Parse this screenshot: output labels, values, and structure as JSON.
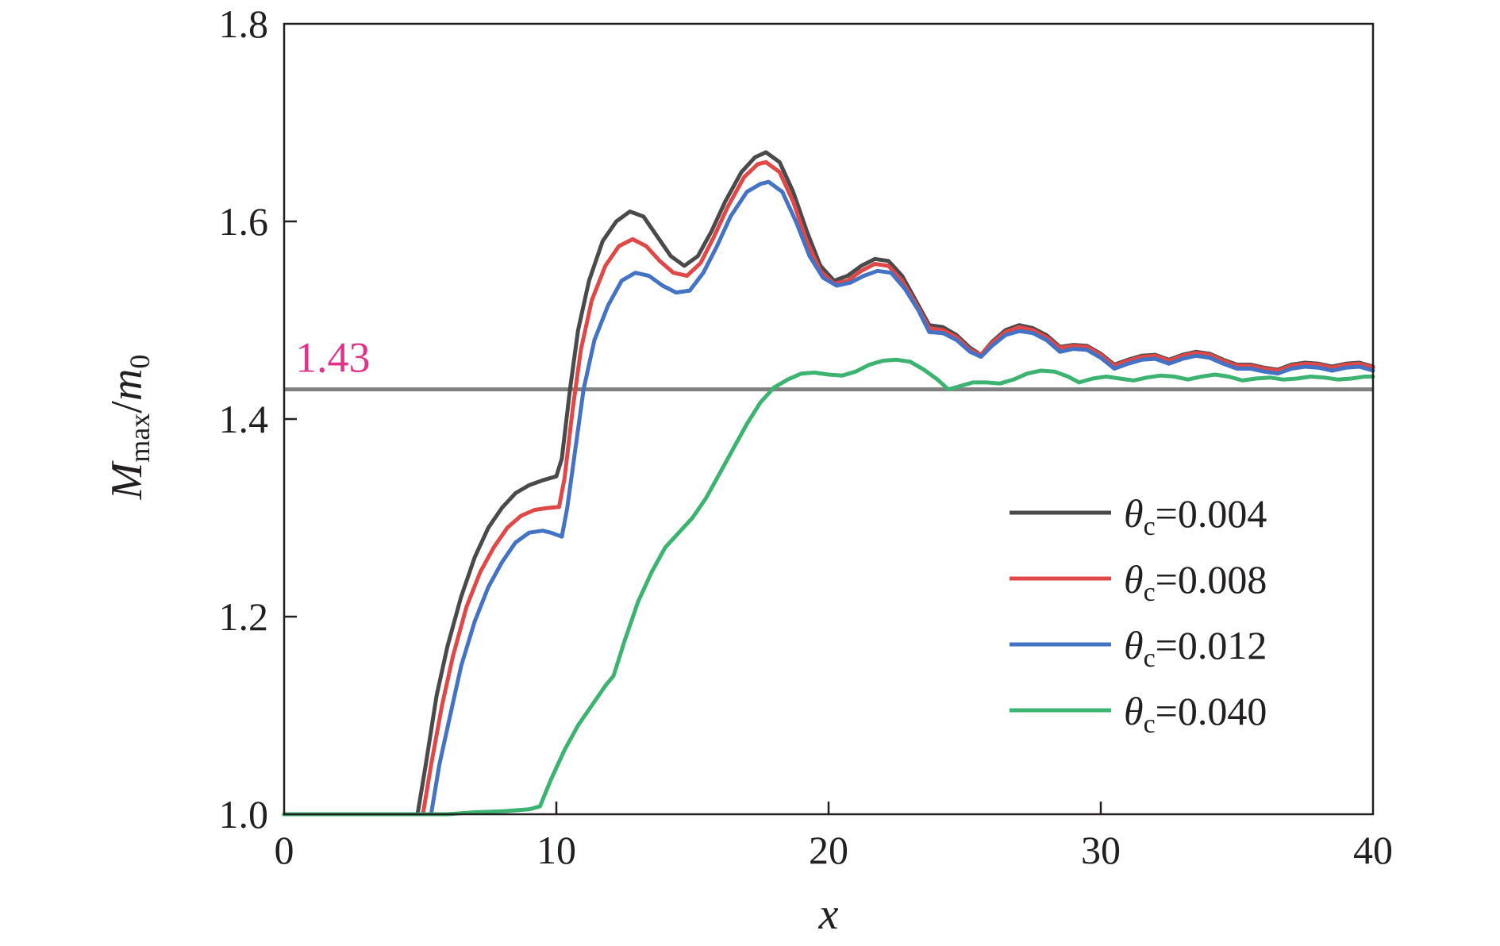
{
  "chart_data": {
    "type": "line",
    "title": "",
    "xlabel": "x",
    "ylabel": {
      "main": "M",
      "sub": "max",
      "sep": "/",
      "main2": "m",
      "sub2": "0"
    },
    "xlim": [
      0,
      40
    ],
    "ylim": [
      1.0,
      1.8
    ],
    "xticks": [
      0,
      10,
      20,
      30,
      40
    ],
    "yticks": [
      1.0,
      1.2,
      1.4,
      1.6,
      1.8
    ],
    "xtick_labels": [
      "0",
      "10",
      "20",
      "30",
      "40"
    ],
    "ytick_labels": [
      "1.0",
      "1.2",
      "1.4",
      "1.6",
      "1.8"
    ],
    "grid": false,
    "legend_position": "right",
    "reference_line": {
      "y": 1.43,
      "label": "1.43",
      "color": "#808080",
      "label_color": "#e0348c"
    },
    "series": [
      {
        "name": "θc=0.004",
        "sym": "θ",
        "sub": "c",
        "value": "=0.004",
        "color": "#4a4a4a",
        "points": [
          [
            0,
            1.0
          ],
          [
            4.9,
            1.0
          ],
          [
            5.2,
            1.05
          ],
          [
            5.6,
            1.12
          ],
          [
            6.0,
            1.17
          ],
          [
            6.5,
            1.22
          ],
          [
            7.0,
            1.26
          ],
          [
            7.5,
            1.29
          ],
          [
            8.0,
            1.31
          ],
          [
            8.5,
            1.325
          ],
          [
            9.0,
            1.333
          ],
          [
            9.5,
            1.338
          ],
          [
            10.0,
            1.342
          ],
          [
            10.2,
            1.36
          ],
          [
            10.5,
            1.43
          ],
          [
            10.8,
            1.49
          ],
          [
            11.2,
            1.54
          ],
          [
            11.7,
            1.58
          ],
          [
            12.2,
            1.6
          ],
          [
            12.7,
            1.61
          ],
          [
            13.2,
            1.605
          ],
          [
            13.7,
            1.585
          ],
          [
            14.2,
            1.565
          ],
          [
            14.7,
            1.555
          ],
          [
            15.2,
            1.565
          ],
          [
            15.7,
            1.59
          ],
          [
            16.2,
            1.62
          ],
          [
            16.8,
            1.65
          ],
          [
            17.3,
            1.665
          ],
          [
            17.7,
            1.67
          ],
          [
            18.2,
            1.66
          ],
          [
            18.7,
            1.63
          ],
          [
            19.2,
            1.59
          ],
          [
            19.7,
            1.555
          ],
          [
            20.2,
            1.54
          ],
          [
            20.7,
            1.545
          ],
          [
            21.2,
            1.555
          ],
          [
            21.7,
            1.562
          ],
          [
            22.2,
            1.56
          ],
          [
            22.7,
            1.545
          ],
          [
            23.2,
            1.52
          ],
          [
            23.7,
            1.495
          ],
          [
            24.2,
            1.493
          ],
          [
            24.7,
            1.485
          ],
          [
            25.2,
            1.472
          ],
          [
            25.6,
            1.465
          ],
          [
            26.0,
            1.478
          ],
          [
            26.5,
            1.49
          ],
          [
            27.0,
            1.495
          ],
          [
            27.5,
            1.492
          ],
          [
            28.0,
            1.485
          ],
          [
            28.5,
            1.473
          ],
          [
            29.0,
            1.475
          ],
          [
            29.5,
            1.474
          ],
          [
            30.0,
            1.466
          ],
          [
            30.5,
            1.455
          ],
          [
            31.0,
            1.46
          ],
          [
            31.5,
            1.464
          ],
          [
            32.0,
            1.465
          ],
          [
            32.5,
            1.46
          ],
          [
            33.0,
            1.465
          ],
          [
            33.5,
            1.468
          ],
          [
            34.0,
            1.466
          ],
          [
            34.5,
            1.46
          ],
          [
            35.0,
            1.455
          ],
          [
            35.5,
            1.455
          ],
          [
            36.0,
            1.452
          ],
          [
            36.5,
            1.45
          ],
          [
            37.0,
            1.455
          ],
          [
            37.5,
            1.457
          ],
          [
            38.0,
            1.456
          ],
          [
            38.5,
            1.453
          ],
          [
            39.0,
            1.456
          ],
          [
            39.5,
            1.457
          ],
          [
            40.0,
            1.453
          ]
        ]
      },
      {
        "name": "θc=0.008",
        "sym": "θ",
        "sub": "c",
        "value": "=0.008",
        "color": "#e04848",
        "points": [
          [
            0,
            1.0
          ],
          [
            5.1,
            1.0
          ],
          [
            5.4,
            1.05
          ],
          [
            5.8,
            1.11
          ],
          [
            6.2,
            1.16
          ],
          [
            6.7,
            1.21
          ],
          [
            7.2,
            1.245
          ],
          [
            7.7,
            1.27
          ],
          [
            8.2,
            1.29
          ],
          [
            8.7,
            1.302
          ],
          [
            9.2,
            1.308
          ],
          [
            9.7,
            1.31
          ],
          [
            10.1,
            1.311
          ],
          [
            10.3,
            1.34
          ],
          [
            10.6,
            1.41
          ],
          [
            10.9,
            1.47
          ],
          [
            11.3,
            1.52
          ],
          [
            11.8,
            1.555
          ],
          [
            12.3,
            1.575
          ],
          [
            12.8,
            1.582
          ],
          [
            13.3,
            1.575
          ],
          [
            13.8,
            1.56
          ],
          [
            14.3,
            1.548
          ],
          [
            14.8,
            1.545
          ],
          [
            15.3,
            1.558
          ],
          [
            15.8,
            1.585
          ],
          [
            16.3,
            1.615
          ],
          [
            16.9,
            1.645
          ],
          [
            17.4,
            1.658
          ],
          [
            17.7,
            1.66
          ],
          [
            18.2,
            1.65
          ],
          [
            18.7,
            1.62
          ],
          [
            19.2,
            1.58
          ],
          [
            19.7,
            1.55
          ],
          [
            20.2,
            1.537
          ],
          [
            20.7,
            1.54
          ],
          [
            21.2,
            1.55
          ],
          [
            21.7,
            1.557
          ],
          [
            22.2,
            1.555
          ],
          [
            22.7,
            1.54
          ],
          [
            23.2,
            1.517
          ],
          [
            23.7,
            1.492
          ],
          [
            24.2,
            1.49
          ],
          [
            24.7,
            1.483
          ],
          [
            25.2,
            1.47
          ],
          [
            25.6,
            1.465
          ],
          [
            26.0,
            1.477
          ],
          [
            26.5,
            1.488
          ],
          [
            27.0,
            1.493
          ],
          [
            27.5,
            1.49
          ],
          [
            28.0,
            1.483
          ],
          [
            28.5,
            1.472
          ],
          [
            29.0,
            1.474
          ],
          [
            29.5,
            1.473
          ],
          [
            30.0,
            1.465
          ],
          [
            30.5,
            1.454
          ],
          [
            31.0,
            1.459
          ],
          [
            31.5,
            1.463
          ],
          [
            32.0,
            1.464
          ],
          [
            32.5,
            1.459
          ],
          [
            33.0,
            1.464
          ],
          [
            33.5,
            1.467
          ],
          [
            34.0,
            1.465
          ],
          [
            34.5,
            1.459
          ],
          [
            35.0,
            1.454
          ],
          [
            35.5,
            1.454
          ],
          [
            36.0,
            1.451
          ],
          [
            36.5,
            1.449
          ],
          [
            37.0,
            1.454
          ],
          [
            37.5,
            1.456
          ],
          [
            38.0,
            1.455
          ],
          [
            38.5,
            1.452
          ],
          [
            39.0,
            1.455
          ],
          [
            39.5,
            1.456
          ],
          [
            40.0,
            1.452
          ]
        ]
      },
      {
        "name": "θc=0.012",
        "sym": "θ",
        "sub": "c",
        "value": "=0.012",
        "color": "#4472c4",
        "points": [
          [
            0,
            1.0
          ],
          [
            5.4,
            1.0
          ],
          [
            5.7,
            1.05
          ],
          [
            6.1,
            1.1
          ],
          [
            6.5,
            1.15
          ],
          [
            7.0,
            1.195
          ],
          [
            7.5,
            1.23
          ],
          [
            8.0,
            1.255
          ],
          [
            8.5,
            1.275
          ],
          [
            9.0,
            1.285
          ],
          [
            9.5,
            1.287
          ],
          [
            9.8,
            1.285
          ],
          [
            10.2,
            1.281
          ],
          [
            10.4,
            1.31
          ],
          [
            10.7,
            1.37
          ],
          [
            11.0,
            1.43
          ],
          [
            11.4,
            1.48
          ],
          [
            11.9,
            1.515
          ],
          [
            12.4,
            1.54
          ],
          [
            12.9,
            1.548
          ],
          [
            13.4,
            1.545
          ],
          [
            13.9,
            1.535
          ],
          [
            14.4,
            1.528
          ],
          [
            14.9,
            1.53
          ],
          [
            15.4,
            1.548
          ],
          [
            15.9,
            1.575
          ],
          [
            16.4,
            1.605
          ],
          [
            17.0,
            1.63
          ],
          [
            17.5,
            1.638
          ],
          [
            17.8,
            1.64
          ],
          [
            18.3,
            1.63
          ],
          [
            18.8,
            1.6
          ],
          [
            19.3,
            1.565
          ],
          [
            19.8,
            1.543
          ],
          [
            20.3,
            1.535
          ],
          [
            20.8,
            1.538
          ],
          [
            21.3,
            1.545
          ],
          [
            21.8,
            1.55
          ],
          [
            22.3,
            1.548
          ],
          [
            22.8,
            1.532
          ],
          [
            23.3,
            1.51
          ],
          [
            23.7,
            1.488
          ],
          [
            24.2,
            1.487
          ],
          [
            24.7,
            1.48
          ],
          [
            25.2,
            1.468
          ],
          [
            25.6,
            1.463
          ],
          [
            26.0,
            1.474
          ],
          [
            26.5,
            1.485
          ],
          [
            27.0,
            1.489
          ],
          [
            27.5,
            1.487
          ],
          [
            28.0,
            1.48
          ],
          [
            28.5,
            1.468
          ],
          [
            29.0,
            1.471
          ],
          [
            29.5,
            1.47
          ],
          [
            30.0,
            1.462
          ],
          [
            30.5,
            1.451
          ],
          [
            31.0,
            1.456
          ],
          [
            31.5,
            1.46
          ],
          [
            32.0,
            1.461
          ],
          [
            32.5,
            1.456
          ],
          [
            33.0,
            1.461
          ],
          [
            33.5,
            1.464
          ],
          [
            34.0,
            1.462
          ],
          [
            34.5,
            1.456
          ],
          [
            35.0,
            1.451
          ],
          [
            35.5,
            1.451
          ],
          [
            36.0,
            1.448
          ],
          [
            36.5,
            1.446
          ],
          [
            37.0,
            1.451
          ],
          [
            37.5,
            1.453
          ],
          [
            38.0,
            1.452
          ],
          [
            38.5,
            1.449
          ],
          [
            39.0,
            1.452
          ],
          [
            39.5,
            1.453
          ],
          [
            40.0,
            1.449
          ]
        ]
      },
      {
        "name": "θc=0.040",
        "sym": "θ",
        "sub": "c",
        "value": "=0.040",
        "color": "#3cb371",
        "points": [
          [
            0,
            1.0
          ],
          [
            6.0,
            1.0
          ],
          [
            7.0,
            1.002
          ],
          [
            8.0,
            1.003
          ],
          [
            9.0,
            1.005
          ],
          [
            9.4,
            1.008
          ],
          [
            9.8,
            1.035
          ],
          [
            10.3,
            1.065
          ],
          [
            10.8,
            1.09
          ],
          [
            11.3,
            1.11
          ],
          [
            11.8,
            1.13
          ],
          [
            12.1,
            1.14
          ],
          [
            12.5,
            1.175
          ],
          [
            13.0,
            1.215
          ],
          [
            13.5,
            1.245
          ],
          [
            14.0,
            1.27
          ],
          [
            14.5,
            1.285
          ],
          [
            15.0,
            1.3
          ],
          [
            15.5,
            1.32
          ],
          [
            16.0,
            1.345
          ],
          [
            16.5,
            1.37
          ],
          [
            17.0,
            1.395
          ],
          [
            17.5,
            1.417
          ],
          [
            18.0,
            1.432
          ],
          [
            18.5,
            1.44
          ],
          [
            19.0,
            1.446
          ],
          [
            19.5,
            1.447
          ],
          [
            20.0,
            1.445
          ],
          [
            20.5,
            1.444
          ],
          [
            21.0,
            1.448
          ],
          [
            21.5,
            1.455
          ],
          [
            22.0,
            1.459
          ],
          [
            22.5,
            1.46
          ],
          [
            23.0,
            1.458
          ],
          [
            23.5,
            1.45
          ],
          [
            24.0,
            1.44
          ],
          [
            24.4,
            1.43
          ],
          [
            24.8,
            1.433
          ],
          [
            25.3,
            1.437
          ],
          [
            25.8,
            1.437
          ],
          [
            26.3,
            1.436
          ],
          [
            26.8,
            1.44
          ],
          [
            27.3,
            1.446
          ],
          [
            27.8,
            1.449
          ],
          [
            28.3,
            1.448
          ],
          [
            28.8,
            1.443
          ],
          [
            29.2,
            1.437
          ],
          [
            29.7,
            1.441
          ],
          [
            30.2,
            1.443
          ],
          [
            30.7,
            1.441
          ],
          [
            31.2,
            1.439
          ],
          [
            31.7,
            1.442
          ],
          [
            32.2,
            1.444
          ],
          [
            32.7,
            1.443
          ],
          [
            33.2,
            1.44
          ],
          [
            33.7,
            1.443
          ],
          [
            34.2,
            1.445
          ],
          [
            34.7,
            1.443
          ],
          [
            35.2,
            1.439
          ],
          [
            35.7,
            1.441
          ],
          [
            36.2,
            1.442
          ],
          [
            36.7,
            1.44
          ],
          [
            37.2,
            1.441
          ],
          [
            37.7,
            1.443
          ],
          [
            38.2,
            1.442
          ],
          [
            38.7,
            1.44
          ],
          [
            39.2,
            1.441
          ],
          [
            39.7,
            1.443
          ],
          [
            40.0,
            1.443
          ]
        ]
      }
    ]
  }
}
